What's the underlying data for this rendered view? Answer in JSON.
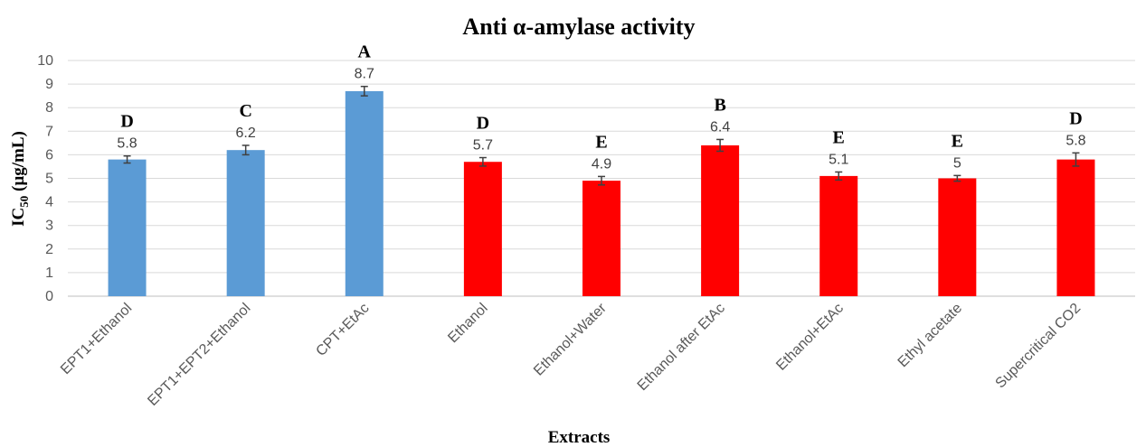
{
  "chart_data": {
    "type": "bar",
    "title": "Anti α-amylase activity",
    "xlabel": "Extracts",
    "ylabel_main": "IC",
    "ylabel_sub": "50",
    "ylabel_unit": "(µg/mL)",
    "ylim": [
      0,
      10
    ],
    "yticks": [
      "0",
      "1",
      "2",
      "3",
      "4",
      "5",
      "6",
      "7",
      "8",
      "9",
      "10"
    ],
    "grid": true,
    "categories": [
      "EPT1+Ethanol",
      "EPT1+EPT2+Ethanol",
      "CPT+EtAc",
      "Ethanol",
      "Ethanol+Water",
      "Ethanol after EtAc",
      "Ethanol+EtAc",
      "Ethyl acetate",
      "Supercritical CO2"
    ],
    "values": [
      5.8,
      6.2,
      8.7,
      5.7,
      4.9,
      6.4,
      5.1,
      5,
      5.8
    ],
    "value_labels": [
      "5.8",
      "6.2",
      "8.7",
      "5.7",
      "4.9",
      "6.4",
      "5.1",
      "5",
      "5.8"
    ],
    "errors": [
      0.15,
      0.2,
      0.2,
      0.18,
      0.18,
      0.25,
      0.17,
      0.12,
      0.28
    ],
    "significance_letters": [
      "D",
      "C",
      "A",
      "D",
      "E",
      "B",
      "E",
      "E",
      "D"
    ],
    "bar_colors": [
      "#5b9bd5",
      "#5b9bd5",
      "#5b9bd5",
      "#ff0000",
      "#ff0000",
      "#ff0000",
      "#ff0000",
      "#ff0000",
      "#ff0000"
    ]
  }
}
